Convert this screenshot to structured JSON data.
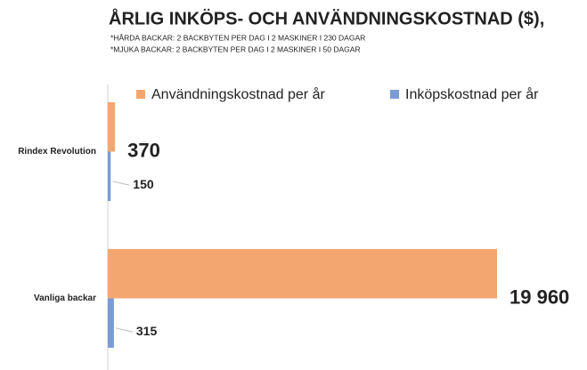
{
  "chart_data": {
    "type": "bar",
    "orientation": "horizontal",
    "title": "ÅRLIG INKÖPS- OCH ANVÄNDNINGSKOSTNAD ($),",
    "subtitle": [
      "*HÅRDA BACKAR: 2 BACKBYTEN PER DAG I 2 MASKINER I 230 DAGAR",
      "*MJUKA BACKAR: 2 BACKBYTEN PER DAG I 2 MASKINER I 50 DAGAR"
    ],
    "categories": [
      "Rindex Revolution",
      "Vanliga backar"
    ],
    "series": [
      {
        "name": "Användningskostnad per år",
        "color": "#f4a670",
        "values": [
          370,
          19960
        ],
        "value_labels": [
          "370",
          "19 960"
        ]
      },
      {
        "name": "Inköpskostnad per år",
        "color": "#7b9bd6",
        "values": [
          150,
          315
        ],
        "value_labels": [
          "150",
          "315"
        ]
      }
    ],
    "legend": "top"
  }
}
